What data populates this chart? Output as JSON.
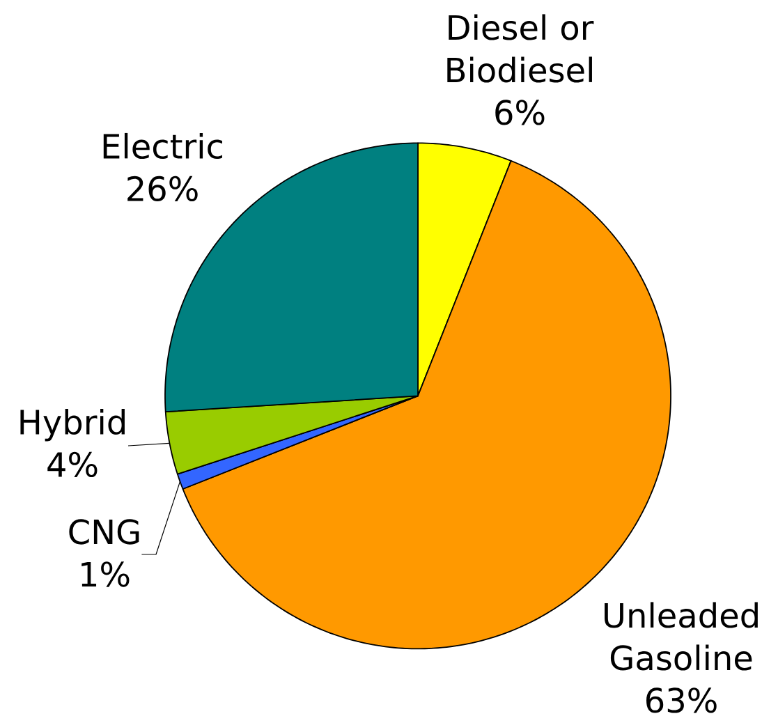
{
  "chart_data": {
    "type": "pie",
    "categories": [
      "Diesel or Biodiesel",
      "Unleaded Gasoline",
      "CNG",
      "Hybrid",
      "Electric"
    ],
    "values": [
      6,
      63,
      1,
      4,
      26
    ],
    "colors": [
      "#ffff00",
      "#ff9900",
      "#3366ff",
      "#99cc00",
      "#008080"
    ],
    "value_labels": [
      "6%",
      "63%",
      "1%",
      "4%",
      "26%"
    ]
  }
}
